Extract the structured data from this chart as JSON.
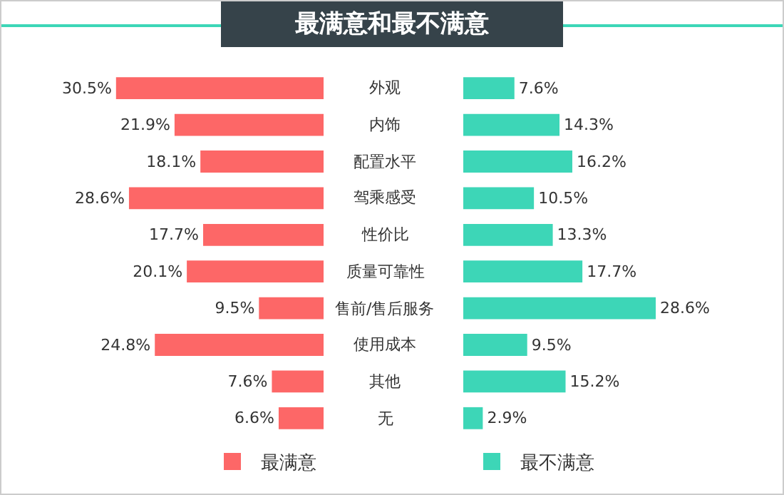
{
  "chart_data": [
    {
      "type": "bar",
      "orientation": "horizontal",
      "title": "最满意和最不满意",
      "categories": [
        "外观",
        "内饰",
        "配置水平",
        "驾乘感受",
        "性价比",
        "质量可靠性",
        "售前/售后服务",
        "使用成本",
        "其他",
        "无"
      ],
      "tick_labels": "y",
      "legend": "bottom",
      "series": [
        {
          "name": "最满意",
          "color": "#fd6767",
          "values": [
            30.5,
            21.9,
            18.1,
            28.6,
            17.7,
            20.1,
            9.5,
            24.8,
            7.6,
            6.6
          ],
          "value_labels": [
            "30.5%",
            "21.9%",
            "18.1%",
            "28.6%",
            "17.7%",
            "20.1%",
            "9.5%",
            "24.8%",
            "7.6%",
            "6.6%"
          ]
        }
      ]
    },
    {
      "type": "bar",
      "orientation": "horizontal",
      "categories": [
        null,
        null,
        null,
        null,
        null,
        null,
        null,
        null,
        null,
        null
      ],
      "tick_labels": false,
      "legend": "bottom",
      "series": [
        {
          "name": "最不满意",
          "color": "#3dd6b7",
          "values": [
            7.6,
            14.3,
            16.2,
            10.5,
            13.3,
            17.7,
            28.6,
            9.5,
            15.2,
            2.9
          ],
          "value_labels": [
            "7.6%",
            "14.3%",
            "16.2%",
            "10.5%",
            "13.3%",
            "17.7%",
            "28.6%",
            "9.5%",
            "15.2%",
            "2.9%"
          ]
        }
      ]
    }
  ]
}
